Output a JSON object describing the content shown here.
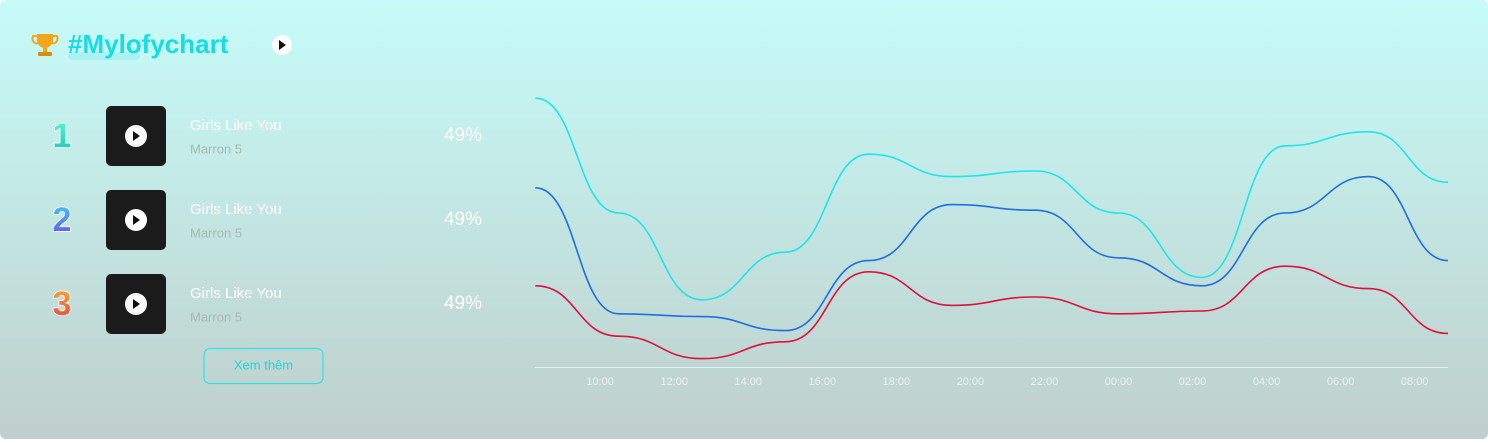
{
  "header": {
    "title": "#Mylofychart"
  },
  "ranking": [
    {
      "rank": 1,
      "title": "Girls Like You",
      "artist": "Marron 5",
      "percent": "49%"
    },
    {
      "rank": 2,
      "title": "Girls Like You",
      "artist": "Marron 5",
      "percent": "49%"
    },
    {
      "rank": 3,
      "title": "Girls Like You",
      "artist": "Marron 5",
      "percent": "49%"
    }
  ],
  "more_button": "Xem thêm",
  "chart_data": {
    "type": "line",
    "x": [
      8.25,
      10.5,
      12.75,
      15,
      17.25,
      19.5,
      21.75,
      24,
      26.25,
      28.5,
      30.75,
      32.9
    ],
    "xlim": [
      8.24,
      32.9
    ],
    "xticks": [
      {
        "value": 10,
        "label": "10:00"
      },
      {
        "value": 12,
        "label": "12:00"
      },
      {
        "value": 14,
        "label": "14:00"
      },
      {
        "value": 16,
        "label": "16:00"
      },
      {
        "value": 18,
        "label": "18:00"
      },
      {
        "value": 20,
        "label": "20:00"
      },
      {
        "value": 22,
        "label": "22:00"
      },
      {
        "value": 24,
        "label": "00:00"
      },
      {
        "value": 26,
        "label": "02:00"
      },
      {
        "value": 28,
        "label": "04:00"
      },
      {
        "value": 30,
        "label": "06:00"
      },
      {
        "value": 32,
        "label": "08:00"
      }
    ],
    "ylim": [
      0,
      100
    ],
    "series": [
      {
        "color": "#1de5ea",
        "values": [
          96,
          55,
          24,
          41,
          76,
          68,
          70,
          55,
          32,
          79,
          84,
          66
        ]
      },
      {
        "color": "#1e6fe0",
        "values": [
          64,
          19,
          18,
          13,
          38,
          58,
          56,
          39,
          29,
          55,
          68,
          38
        ]
      },
      {
        "color": "#e0103c",
        "values": [
          29,
          11,
          3,
          9,
          34,
          22,
          25,
          19,
          20,
          36,
          28,
          12
        ]
      }
    ]
  }
}
